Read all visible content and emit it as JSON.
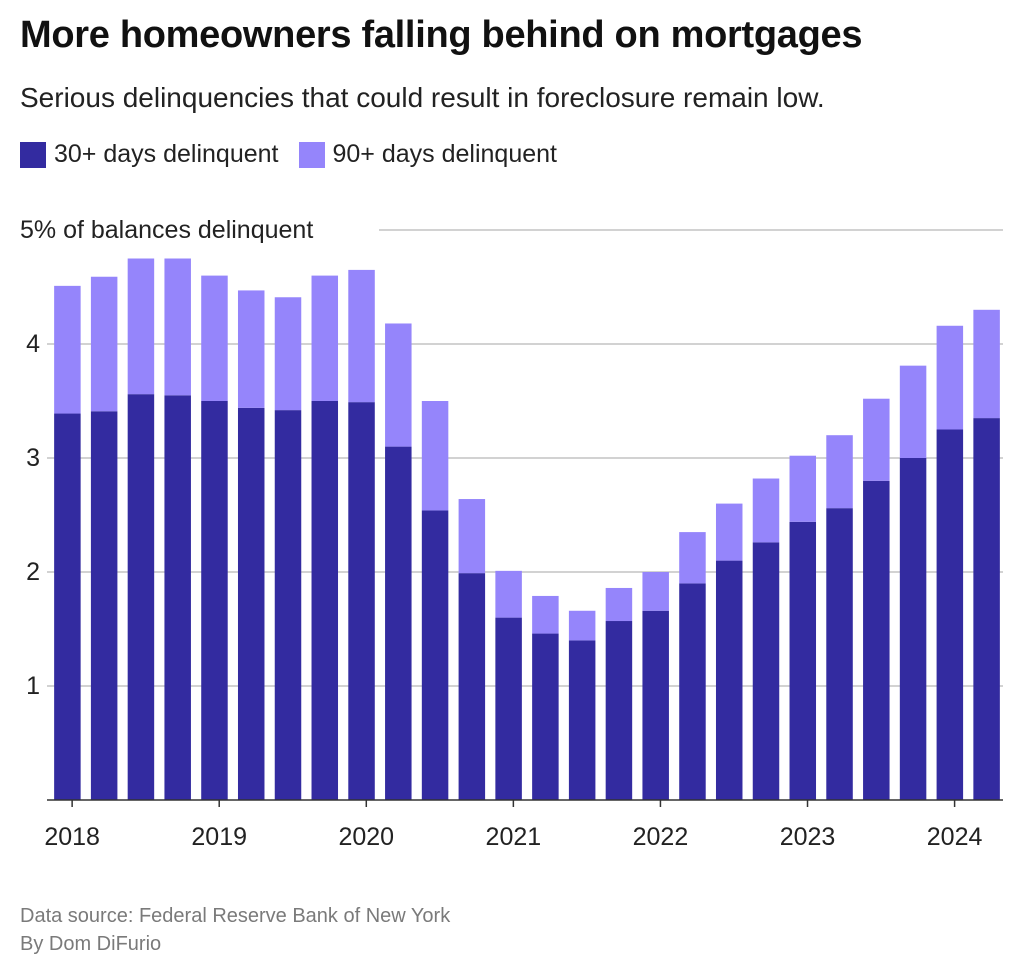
{
  "title": "More homeowners falling behind on mortgages",
  "subtitle": "Serious delinquencies that could result in foreclosure remain low.",
  "colors": {
    "series_30": "#332ba0",
    "series_90": "#9585fb",
    "grid": "#b8b8b8",
    "axis": "#333333",
    "text": "#1a1a1a",
    "footer": "#7a7a7a"
  },
  "legend": {
    "items": [
      {
        "label": "30+ days delinquent"
      },
      {
        "label": "90+ days delinquent"
      }
    ]
  },
  "footer": {
    "source": "Data source: Federal Reserve Bank of New York",
    "byline": "By Dom DiFurio"
  },
  "chart_data": {
    "type": "bar",
    "stacked": true,
    "title": "More homeowners falling behind on mortgages",
    "subtitle": "Serious delinquencies that could result in foreclosure remain low.",
    "ylabel": "5% of balances delinquent",
    "ylim": [
      0,
      5
    ],
    "yticks": [
      {
        "value": 1,
        "label": "1"
      },
      {
        "value": 2,
        "label": "2"
      },
      {
        "value": 3,
        "label": "3"
      },
      {
        "value": 4,
        "label": "4"
      },
      {
        "value": 5,
        "label": "5% of balances delinquent"
      }
    ],
    "grid": true,
    "categories": [
      "2018 Q1",
      "2018 Q2",
      "2018 Q3",
      "2018 Q4",
      "2019 Q1",
      "2019 Q2",
      "2019 Q3",
      "2019 Q4",
      "2020 Q1",
      "2020 Q2",
      "2020 Q3",
      "2020 Q4",
      "2021 Q1",
      "2021 Q2",
      "2021 Q3",
      "2021 Q4",
      "2022 Q1",
      "2022 Q2",
      "2022 Q3",
      "2022 Q4",
      "2023 Q1",
      "2023 Q2",
      "2023 Q3",
      "2023 Q4",
      "2024 Q1",
      "2024 Q2"
    ],
    "xticks": [
      {
        "index": 0,
        "label": "2018"
      },
      {
        "index": 4,
        "label": "2019"
      },
      {
        "index": 8,
        "label": "2020"
      },
      {
        "index": 12,
        "label": "2021"
      },
      {
        "index": 16,
        "label": "2022"
      },
      {
        "index": 20,
        "label": "2023"
      },
      {
        "index": 24,
        "label": "2024"
      }
    ],
    "series": [
      {
        "name": "30+ days delinquent",
        "values": [
          3.39,
          3.41,
          3.56,
          3.55,
          3.5,
          3.44,
          3.42,
          3.5,
          3.49,
          3.1,
          2.54,
          1.99,
          1.6,
          1.46,
          1.4,
          1.57,
          1.66,
          1.9,
          2.1,
          2.26,
          2.44,
          2.56,
          2.8,
          3.0,
          3.25,
          3.35
        ]
      },
      {
        "name": "90+ days delinquent",
        "values": [
          1.12,
          1.18,
          1.19,
          1.2,
          1.1,
          1.03,
          0.99,
          1.1,
          1.16,
          1.08,
          0.96,
          0.65,
          0.41,
          0.33,
          0.26,
          0.29,
          0.34,
          0.45,
          0.5,
          0.56,
          0.58,
          0.64,
          0.72,
          0.81,
          0.91,
          0.95
        ]
      }
    ]
  }
}
